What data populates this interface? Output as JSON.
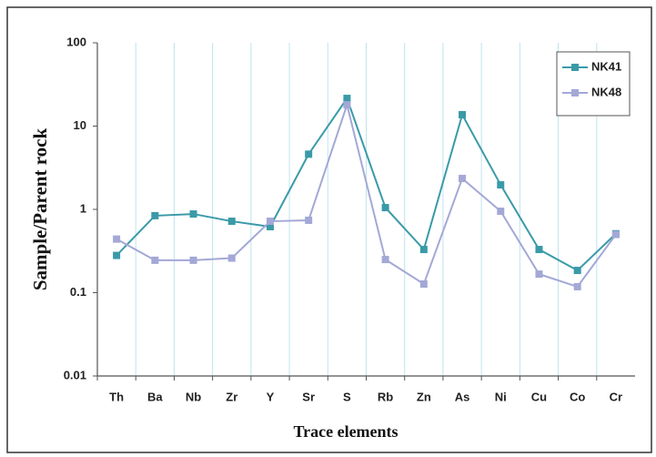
{
  "chart_data": {
    "type": "line",
    "xlabel": "Trace elements",
    "ylabel": "Sample/Parent rock",
    "categories": [
      "Th",
      "Ba",
      "Nb",
      "Zr",
      "Y",
      "Sr",
      "S",
      "Rb",
      "Zn",
      "As",
      "Ni",
      "Cu",
      "Co",
      "Cr"
    ],
    "series": [
      {
        "name": "NK41",
        "color": "#3a9aa8",
        "values": [
          0.28,
          0.84,
          0.88,
          0.72,
          0.62,
          4.6,
          21.5,
          1.05,
          0.33,
          13.7,
          1.97,
          0.33,
          0.185,
          0.51
        ]
      },
      {
        "name": "NK48",
        "color": "#a3a8d6",
        "values": [
          0.44,
          0.245,
          0.245,
          0.26,
          0.72,
          0.74,
          18,
          0.25,
          0.127,
          2.35,
          0.95,
          0.167,
          0.118,
          0.5
        ]
      }
    ],
    "ylim": [
      0.01,
      100
    ],
    "yticks": [
      0.01,
      0.1,
      1,
      10,
      100
    ],
    "log_y": true,
    "grid": true,
    "legend": "upper right"
  }
}
